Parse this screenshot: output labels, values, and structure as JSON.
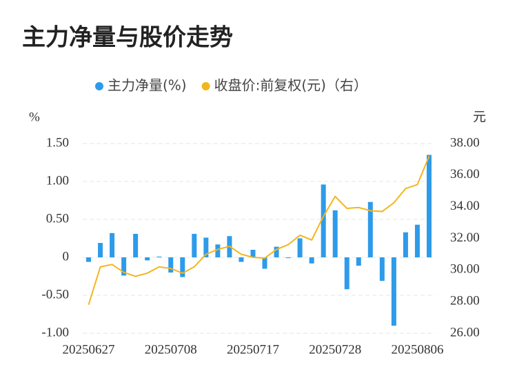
{
  "chart_data": {
    "type": "bar-line",
    "title": "主力净量与股价走势",
    "y_label": "%",
    "y2_label": "元",
    "categories": [
      "20250627",
      null,
      null,
      null,
      null,
      null,
      null,
      "20250708",
      null,
      null,
      null,
      null,
      null,
      null,
      "20250717",
      null,
      null,
      null,
      null,
      null,
      null,
      "20250728",
      null,
      null,
      null,
      null,
      null,
      null,
      "20250806",
      null
    ],
    "series": [
      {
        "name": "主力净量(%)",
        "type": "bar",
        "color": "#2e9bea",
        "axis": "y",
        "values": [
          -0.06,
          0.19,
          0.32,
          -0.24,
          0.31,
          -0.04,
          0.01,
          -0.2,
          -0.26,
          0.31,
          0.26,
          0.17,
          0.28,
          -0.06,
          0.1,
          -0.15,
          0.14,
          -0.01,
          0.25,
          -0.08,
          0.96,
          0.62,
          -0.42,
          -0.11,
          0.73,
          -0.31,
          -0.9,
          0.33,
          0.43,
          1.35
        ]
      },
      {
        "name": "收盘价:前复权(元)（右）",
        "type": "line",
        "color": "#f3b51c",
        "axis": "y2",
        "values": [
          27.8,
          30.2,
          30.35,
          29.85,
          29.6,
          29.8,
          30.2,
          30.1,
          29.8,
          30.2,
          31.0,
          31.3,
          31.5,
          31.0,
          30.8,
          30.75,
          31.3,
          31.6,
          32.2,
          31.9,
          33.4,
          34.65,
          33.9,
          33.95,
          33.75,
          33.7,
          34.25,
          35.15,
          35.4,
          37.2
        ]
      }
    ],
    "ylim": [
      -1.0,
      1.5
    ],
    "yticks": [
      {
        "value": -1.0,
        "label": "-1.00"
      },
      {
        "value": -0.5,
        "label": "-0.50"
      },
      0,
      {
        "value": 0.5,
        "label": "0.50"
      },
      {
        "value": 1.0,
        "label": "1.00"
      },
      {
        "value": 1.5,
        "label": "1.50"
      }
    ],
    "y2lim": [
      26,
      38
    ],
    "y2ticks": [
      {
        "value": 26,
        "label": "26.00"
      },
      {
        "value": 28,
        "label": "28.00"
      },
      {
        "value": 30,
        "label": "30.00"
      },
      {
        "value": 32,
        "label": "32.00"
      },
      {
        "value": 34,
        "label": "34.00"
      },
      {
        "value": 36,
        "label": "36.00"
      },
      {
        "value": 38,
        "label": "38.00"
      }
    ],
    "grid": true,
    "legend": "top"
  }
}
